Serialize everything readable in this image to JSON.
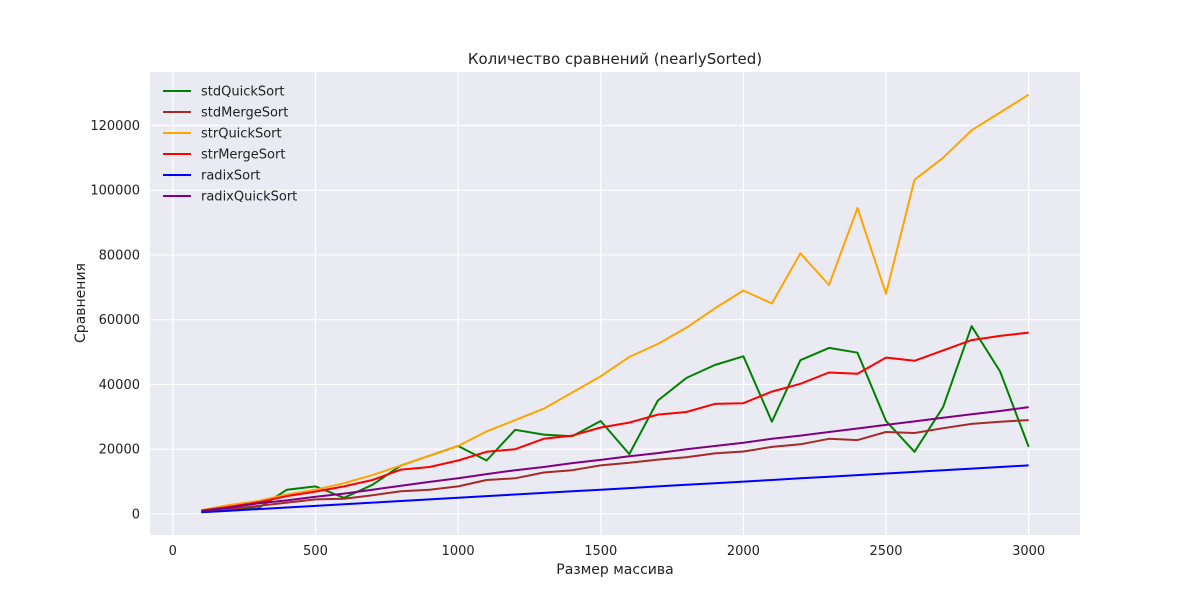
{
  "chart_data": {
    "type": "line",
    "title": "Количество сравнений (nearlySorted)",
    "xlabel": "Размер массива",
    "ylabel": "Сравнения",
    "xlim": [
      -80,
      3180
    ],
    "ylim": [
      -6500,
      136500
    ],
    "xticks": [
      0,
      500,
      1000,
      1500,
      2000,
      2500,
      3000
    ],
    "yticks": [
      0,
      20000,
      40000,
      60000,
      80000,
      100000,
      120000
    ],
    "grid": true,
    "legend_position": "top-left",
    "x": [
      100,
      200,
      300,
      400,
      500,
      600,
      700,
      800,
      900,
      1000,
      1100,
      1200,
      1300,
      1400,
      1500,
      1600,
      1700,
      1800,
      1900,
      2000,
      2100,
      2200,
      2300,
      2400,
      2500,
      2600,
      2700,
      2800,
      2900,
      3000
    ],
    "series": [
      {
        "name": "stdQuickSort",
        "color": "#008000",
        "values": [
          800,
          1500,
          1800,
          7500,
          8500,
          5000,
          9000,
          15000,
          18000,
          21000,
          16500,
          26000,
          24500,
          24000,
          28700,
          18500,
          35000,
          42000,
          46000,
          48700,
          28500,
          47500,
          51300,
          49800,
          28700,
          19200,
          33000,
          58000,
          44000,
          20700
        ]
      },
      {
        "name": "stdMergeSort",
        "color": "#a52a2a",
        "values": [
          700,
          1500,
          2500,
          3500,
          4500,
          4700,
          5800,
          7000,
          7500,
          8500,
          10500,
          11000,
          12800,
          13500,
          15000,
          15800,
          16800,
          17500,
          18700,
          19300,
          20700,
          21500,
          23200,
          22800,
          25300,
          25000,
          26500,
          27800,
          28500,
          29000
        ]
      },
      {
        "name": "strQuickSort",
        "color": "#ffa500",
        "values": [
          1200,
          2800,
          4000,
          6000,
          7500,
          9500,
          12000,
          15000,
          18000,
          21000,
          25500,
          29000,
          32500,
          37500,
          42500,
          48500,
          52500,
          57500,
          63500,
          69000,
          65000,
          80500,
          70700,
          94500,
          68000,
          103200,
          110000,
          118500,
          124000,
          129500
        ]
      },
      {
        "name": "strMergeSort",
        "color": "#ff0000",
        "values": [
          1000,
          2200,
          3600,
          5500,
          6900,
          8500,
          10500,
          13700,
          14500,
          16500,
          19200,
          20000,
          23200,
          24200,
          26700,
          28200,
          30700,
          31500,
          34000,
          34200,
          37800,
          40200,
          43700,
          43300,
          48300,
          47300,
          50500,
          53700,
          55000,
          56000
        ]
      },
      {
        "name": "radixSort",
        "color": "#0000ff",
        "values": [
          500,
          1000,
          1500,
          2000,
          2500,
          3000,
          3500,
          4000,
          4500,
          5000,
          5500,
          6000,
          6500,
          7000,
          7500,
          8000,
          8500,
          9000,
          9500,
          10000,
          10500,
          11000,
          11500,
          12000,
          12500,
          13000,
          13500,
          14000,
          14500,
          15000
        ]
      },
      {
        "name": "radixQuickSort",
        "color": "#800080",
        "values": [
          1000,
          2000,
          3300,
          4200,
          5300,
          6300,
          7500,
          8700,
          9900,
          11000,
          12300,
          13500,
          14500,
          15700,
          16700,
          17800,
          18800,
          20000,
          21000,
          22000,
          23200,
          24200,
          25300,
          26400,
          27500,
          28600,
          29700,
          30800,
          31800,
          33000
        ]
      }
    ]
  }
}
